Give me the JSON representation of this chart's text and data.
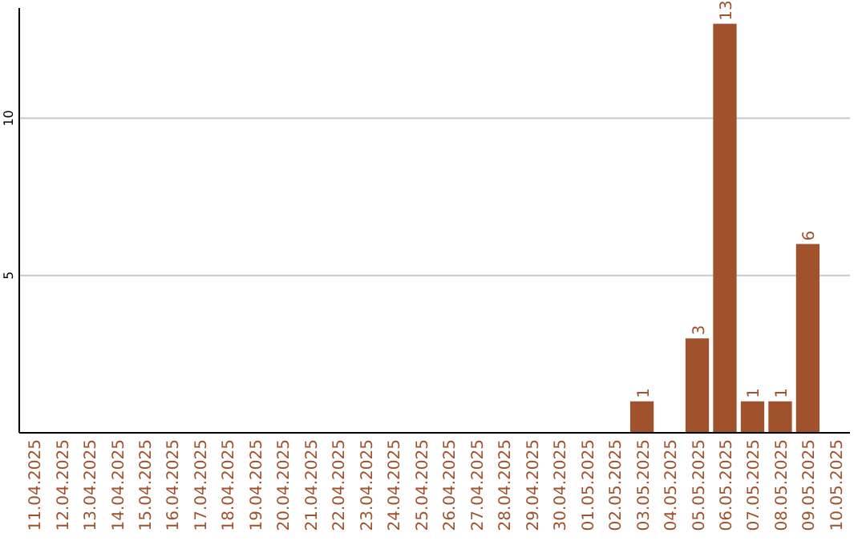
{
  "chart_data": {
    "type": "bar",
    "categories": [
      "11.04.2025",
      "12.04.2025",
      "13.04.2025",
      "14.04.2025",
      "15.04.2025",
      "16.04.2025",
      "17.04.2025",
      "18.04.2025",
      "19.04.2025",
      "20.04.2025",
      "21.04.2025",
      "22.04.2025",
      "23.04.2025",
      "24.04.2025",
      "25.04.2025",
      "26.04.2025",
      "27.04.2025",
      "28.04.2025",
      "29.04.2025",
      "30.04.2025",
      "01.05.2025",
      "02.05.2025",
      "03.05.2025",
      "04.05.2025",
      "05.05.2025",
      "06.05.2025",
      "07.05.2025",
      "08.05.2025",
      "09.05.2025",
      "10.05.2025"
    ],
    "values": [
      0,
      0,
      0,
      0,
      0,
      0,
      0,
      0,
      0,
      0,
      0,
      0,
      0,
      0,
      0,
      0,
      0,
      0,
      0,
      0,
      0,
      0,
      1,
      0,
      3,
      13,
      1,
      1,
      6,
      0
    ],
    "value_labels": [
      null,
      null,
      null,
      null,
      null,
      null,
      null,
      null,
      null,
      null,
      null,
      null,
      null,
      null,
      null,
      null,
      null,
      null,
      null,
      null,
      null,
      null,
      "1",
      null,
      "3",
      "13",
      "1",
      "1",
      "6",
      null
    ],
    "color": "#a0522d",
    "ylim": [
      0,
      13.5
    ],
    "yticks": [
      5,
      10
    ],
    "grid": "y"
  }
}
